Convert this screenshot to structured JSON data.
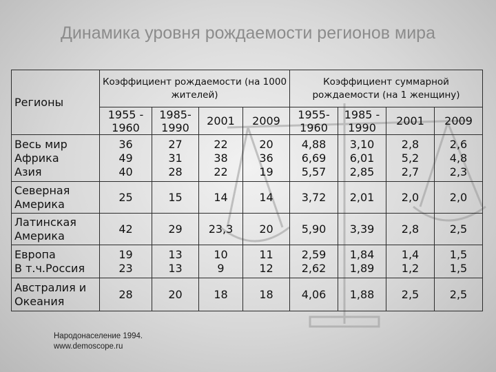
{
  "title": "Динамика уровня рождаемости регионов мира",
  "table": {
    "regions_header": "Регионы",
    "group1_header": "Коэффициент рождаемости (на 1000 жителей)",
    "group2_header": "Коэффициент суммарной рождаемости (на 1 женщину)",
    "periods1": [
      "1955 - 1960",
      "1985- 1990",
      "2001",
      "2009"
    ],
    "periods2": [
      "1955- 1960",
      "1985 - 1990",
      "2001",
      "2009"
    ],
    "rows_a": [
      {
        "region": "Весь мир",
        "values": [
          "36",
          "27",
          "22",
          "20",
          "4,88",
          "3,10",
          "2,8",
          "2,6"
        ]
      },
      {
        "region": "Африка",
        "values": [
          "49",
          "31",
          "38",
          "36",
          "6,69",
          "6,01",
          "5,2",
          "4,8"
        ]
      },
      {
        "region": "Азия",
        "values": [
          "40",
          "28",
          "22",
          "19",
          "5,57",
          "2,85",
          "2,7",
          "2,3"
        ]
      }
    ],
    "row_na": {
      "region": "Северная Америка",
      "values": [
        "25",
        "15",
        "14",
        "14",
        "3,72",
        "2,01",
        "2,0",
        "2,0"
      ]
    },
    "row_la": {
      "region": "Латинская Америка",
      "values": [
        "42",
        "29",
        "23,3",
        "20",
        "5,90",
        "3,39",
        "2,8",
        "2,5"
      ]
    },
    "rows_b": [
      {
        "region": "Европа",
        "values": [
          "19",
          "13",
          "10",
          "11",
          "2,59",
          "1,84",
          "1,4",
          "1,5"
        ]
      },
      {
        "region": "В т.ч.Россия",
        "values": [
          "23",
          "13",
          "9",
          "12",
          "2,62",
          "1,89",
          "1,2",
          "1,5"
        ]
      }
    ],
    "row_au": {
      "region": "Австралия и Океания",
      "values": [
        "28",
        "20",
        "18",
        "18",
        "4,06",
        "1,88",
        "2,5",
        "2,5"
      ]
    }
  },
  "source": {
    "line1": "Народонаселение 1994.",
    "line2": "www.demoscope.ru"
  }
}
